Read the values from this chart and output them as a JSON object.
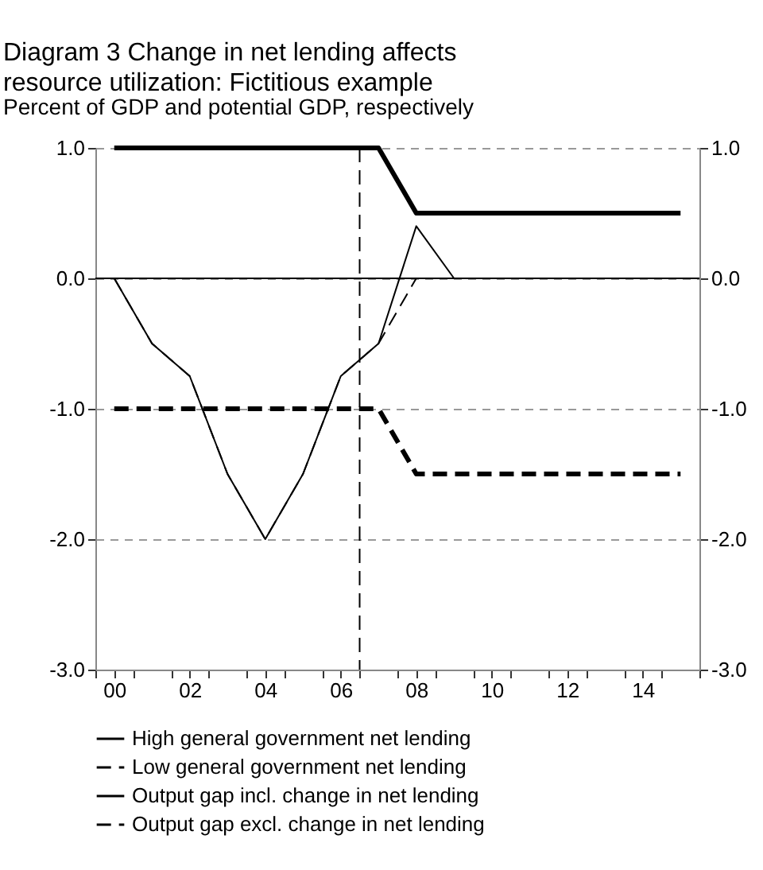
{
  "chart_data": {
    "type": "line",
    "title": "Diagram 3 Change in net lending affects resource utilization: Fictitious example",
    "subtitle": "Percent of GDP and potential GDP, respectively",
    "x": [
      0,
      1,
      2,
      3,
      4,
      5,
      6,
      7,
      8,
      9,
      10,
      11,
      12,
      13,
      14,
      15
    ],
    "series": [
      {
        "name": "High general government net lending",
        "color": "#000000",
        "line_style": "solid",
        "values": [
          1,
          1,
          1,
          1,
          1,
          1,
          1,
          1,
          0.5,
          0.5,
          0.5,
          0.5,
          0.5,
          0.5,
          0.5,
          0.5
        ]
      },
      {
        "name": "Low general government net lending",
        "color": "#000000",
        "line_style": "dashed",
        "values": [
          -1,
          -1,
          -1,
          -1,
          -1,
          -1,
          -1,
          -1,
          -1.5,
          -1.5,
          -1.5,
          -1.5,
          -1.5,
          -1.5,
          -1.5,
          -1.5
        ]
      },
      {
        "name": "Output gap incl. change in net lending",
        "color": "#000000",
        "line_style": "solid",
        "values": [
          0,
          -0.5,
          -0.75,
          -1.5,
          -2,
          -1.5,
          -0.75,
          -0.5,
          0.4,
          0,
          0,
          0,
          0,
          0,
          0,
          0
        ]
      },
      {
        "name": "Output gap excl. change in net lending",
        "color": "#000000",
        "line_style": "dashed",
        "values": [
          0,
          -0.5,
          -0.75,
          -1.5,
          -2,
          -1.5,
          -0.75,
          -0.5,
          0,
          0,
          0,
          0,
          0,
          0,
          0,
          0
        ]
      }
    ],
    "xlim": [
      -0.5,
      15.5
    ],
    "xticks": [
      {
        "value": -0.5,
        "label": null
      },
      {
        "value": 0,
        "label": "00"
      },
      {
        "value": 0.5,
        "label": null
      },
      {
        "value": 1.5,
        "label": null
      },
      {
        "value": 2,
        "label": "02"
      },
      {
        "value": 2.5,
        "label": null
      },
      {
        "value": 3.5,
        "label": null
      },
      {
        "value": 4,
        "label": "04"
      },
      {
        "value": 4.5,
        "label": null
      },
      {
        "value": 5.5,
        "label": null
      },
      {
        "value": 6,
        "label": "06"
      },
      {
        "value": 6.5,
        "label": null
      },
      {
        "value": 7.5,
        "label": null
      },
      {
        "value": 8,
        "label": "08"
      },
      {
        "value": 8.5,
        "label": null
      },
      {
        "value": 9.5,
        "label": null
      },
      {
        "value": 10,
        "label": "10"
      },
      {
        "value": 10.5,
        "label": null
      },
      {
        "value": 11.5,
        "label": null
      },
      {
        "value": 12,
        "label": "12"
      },
      {
        "value": 12.5,
        "label": null
      },
      {
        "value": 13.5,
        "label": null
      },
      {
        "value": 14,
        "label": "14"
      },
      {
        "value": 14.5,
        "label": null
      },
      {
        "value": 15.5,
        "label": null
      }
    ],
    "ylim": [
      -3,
      1
    ],
    "yticks": [
      {
        "value": -3,
        "label": "-3.0"
      },
      {
        "value": -2,
        "label": "-2.0"
      },
      {
        "value": -1,
        "label": "-1.0"
      },
      {
        "value": 0,
        "label": "0.0"
      },
      {
        "value": 1,
        "label": "1.0"
      }
    ],
    "y2lim": [
      -3,
      1
    ],
    "y2ticks": [
      {
        "value": -3,
        "label": "-3.0"
      },
      {
        "value": -2,
        "label": "-2.0"
      },
      {
        "value": -1,
        "label": "-1.0"
      },
      {
        "value": 0,
        "label": "0.0"
      },
      {
        "value": 1,
        "label": "1.0"
      }
    ],
    "ref_lines": [
      {
        "axis": "y",
        "value": 0,
        "color": "#000000",
        "line_style": "solid"
      },
      {
        "axis": "x",
        "value": 6.5,
        "color": "#000000",
        "line_style": "dashed"
      }
    ],
    "grid": "y",
    "legend": "bottom",
    "marker": "none"
  }
}
